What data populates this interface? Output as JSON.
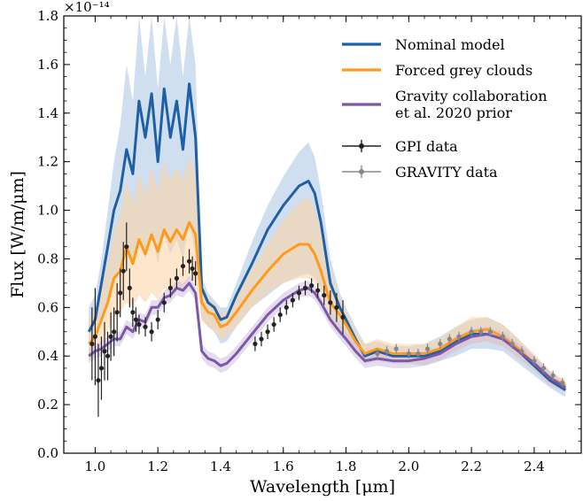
{
  "chart_data": {
    "type": "line",
    "xlabel": "Wavelength [μm]",
    "ylabel": "Flux [W/m/μm]",
    "y_scale_label": "×10⁻¹⁴",
    "y_scale_factor": 1e-14,
    "xlim": [
      0.9,
      2.55
    ],
    "ylim": [
      0.0,
      1.8
    ],
    "x_ticks": [
      1.0,
      1.2,
      1.4,
      1.6,
      1.8,
      2.0,
      2.2,
      2.4
    ],
    "x_tick_labels": [
      "1.0",
      "1.2",
      "1.4",
      "1.6",
      "1.8",
      "2.0",
      "2.2",
      "2.4"
    ],
    "y_ticks": [
      0.0,
      0.2,
      0.4,
      0.6,
      0.8,
      1.0,
      1.2,
      1.4,
      1.6,
      1.8
    ],
    "y_tick_labels": [
      "0.0",
      "0.2",
      "0.4",
      "0.6",
      "0.8",
      "1.0",
      "1.2",
      "1.4",
      "1.6",
      "1.8"
    ],
    "grid": false,
    "legend_position": "top-right",
    "legend": [
      {
        "label": "Nominal model",
        "kind": "line",
        "color": "#1f5fa3"
      },
      {
        "label": "Forced grey clouds",
        "kind": "line",
        "color": "#ff9a1a"
      },
      {
        "label": "Gravity collaboration",
        "label2": "et al. 2020 prior",
        "kind": "line",
        "color": "#7b58a8"
      },
      {
        "label": "GPI data",
        "kind": "errorbar",
        "color": "#222222"
      },
      {
        "label": "GRAVITY data",
        "kind": "errorbar",
        "color": "#888888"
      }
    ],
    "series": [
      {
        "name": "Nominal model",
        "color": "#1f5fa3",
        "band_color": "#a9c4e2",
        "x": [
          0.98,
          1.0,
          1.02,
          1.04,
          1.06,
          1.08,
          1.1,
          1.12,
          1.14,
          1.16,
          1.18,
          1.2,
          1.22,
          1.24,
          1.26,
          1.28,
          1.3,
          1.32,
          1.34,
          1.36,
          1.38,
          1.4,
          1.42,
          1.45,
          1.5,
          1.55,
          1.6,
          1.65,
          1.68,
          1.7,
          1.72,
          1.75,
          1.78,
          1.8,
          1.83,
          1.86,
          1.9,
          1.95,
          2.0,
          2.05,
          2.1,
          2.15,
          2.2,
          2.25,
          2.3,
          2.35,
          2.4,
          2.45,
          2.5
        ],
        "y": [
          0.5,
          0.55,
          0.7,
          0.85,
          1.0,
          1.08,
          1.25,
          1.15,
          1.45,
          1.3,
          1.48,
          1.2,
          1.5,
          1.3,
          1.45,
          1.25,
          1.52,
          1.3,
          0.68,
          0.62,
          0.6,
          0.55,
          0.56,
          0.65,
          0.78,
          0.92,
          1.02,
          1.1,
          1.12,
          1.07,
          0.95,
          0.7,
          0.6,
          0.55,
          0.47,
          0.4,
          0.42,
          0.4,
          0.4,
          0.4,
          0.42,
          0.46,
          0.49,
          0.49,
          0.47,
          0.42,
          0.36,
          0.3,
          0.26
        ],
        "band_upper": [
          0.6,
          0.65,
          0.8,
          1.0,
          1.2,
          1.35,
          1.6,
          1.45,
          1.8,
          1.55,
          1.8,
          1.5,
          1.8,
          1.6,
          1.8,
          1.55,
          1.8,
          1.6,
          0.72,
          0.66,
          0.63,
          0.6,
          0.6,
          0.7,
          0.87,
          1.02,
          1.14,
          1.24,
          1.28,
          1.22,
          1.08,
          0.8,
          0.66,
          0.6,
          0.52,
          0.45,
          0.46,
          0.44,
          0.44,
          0.45,
          0.48,
          0.52,
          0.55,
          0.56,
          0.53,
          0.47,
          0.4,
          0.33,
          0.28
        ],
        "band_lower": [
          0.4,
          0.45,
          0.55,
          0.62,
          0.7,
          0.75,
          0.82,
          0.78,
          0.88,
          0.8,
          0.9,
          0.78,
          0.9,
          0.82,
          0.88,
          0.8,
          0.95,
          0.82,
          0.55,
          0.52,
          0.5,
          0.45,
          0.46,
          0.52,
          0.6,
          0.65,
          0.7,
          0.73,
          0.74,
          0.72,
          0.68,
          0.58,
          0.52,
          0.47,
          0.42,
          0.37,
          0.38,
          0.37,
          0.37,
          0.36,
          0.38,
          0.4,
          0.43,
          0.43,
          0.42,
          0.37,
          0.32,
          0.27,
          0.23
        ]
      },
      {
        "name": "Forced grey clouds",
        "color": "#ff9a1a",
        "band_color": "#fcd2a0",
        "x": [
          0.98,
          1.0,
          1.02,
          1.04,
          1.06,
          1.08,
          1.1,
          1.12,
          1.14,
          1.16,
          1.18,
          1.2,
          1.22,
          1.24,
          1.26,
          1.28,
          1.3,
          1.32,
          1.34,
          1.36,
          1.38,
          1.4,
          1.42,
          1.45,
          1.5,
          1.55,
          1.6,
          1.65,
          1.68,
          1.7,
          1.72,
          1.75,
          1.78,
          1.8,
          1.83,
          1.86,
          1.9,
          1.95,
          2.0,
          2.05,
          2.1,
          2.15,
          2.2,
          2.25,
          2.3,
          2.35,
          2.4,
          2.45,
          2.5
        ],
        "y": [
          0.45,
          0.48,
          0.55,
          0.62,
          0.72,
          0.75,
          0.85,
          0.78,
          0.88,
          0.82,
          0.9,
          0.83,
          0.92,
          0.87,
          0.92,
          0.88,
          0.95,
          0.9,
          0.62,
          0.58,
          0.57,
          0.52,
          0.53,
          0.58,
          0.67,
          0.75,
          0.82,
          0.86,
          0.86,
          0.82,
          0.75,
          0.62,
          0.57,
          0.53,
          0.46,
          0.41,
          0.43,
          0.41,
          0.41,
          0.41,
          0.43,
          0.47,
          0.5,
          0.51,
          0.48,
          0.43,
          0.37,
          0.31,
          0.28
        ],
        "band_upper": [
          0.55,
          0.58,
          0.68,
          0.78,
          0.92,
          0.98,
          1.12,
          1.02,
          1.15,
          1.06,
          1.18,
          1.08,
          1.2,
          1.12,
          1.18,
          1.12,
          1.22,
          1.15,
          0.7,
          0.64,
          0.62,
          0.58,
          0.58,
          0.64,
          0.76,
          0.86,
          0.96,
          1.03,
          1.05,
          1.0,
          0.92,
          0.74,
          0.64,
          0.58,
          0.5,
          0.45,
          0.47,
          0.45,
          0.45,
          0.45,
          0.47,
          0.52,
          0.56,
          0.56,
          0.53,
          0.47,
          0.41,
          0.34,
          0.3
        ],
        "band_lower": [
          0.38,
          0.4,
          0.45,
          0.5,
          0.56,
          0.58,
          0.62,
          0.6,
          0.65,
          0.62,
          0.66,
          0.63,
          0.68,
          0.66,
          0.69,
          0.67,
          0.72,
          0.7,
          0.55,
          0.52,
          0.5,
          0.47,
          0.48,
          0.52,
          0.6,
          0.66,
          0.7,
          0.72,
          0.72,
          0.7,
          0.66,
          0.56,
          0.51,
          0.48,
          0.42,
          0.38,
          0.39,
          0.38,
          0.37,
          0.37,
          0.39,
          0.43,
          0.45,
          0.46,
          0.44,
          0.39,
          0.34,
          0.28,
          0.25
        ]
      },
      {
        "name": "Gravity collaboration et al. 2020 prior",
        "color": "#7b58a8",
        "band_color": "#cfbfe0",
        "x": [
          0.98,
          1.0,
          1.02,
          1.04,
          1.06,
          1.08,
          1.1,
          1.12,
          1.14,
          1.16,
          1.18,
          1.2,
          1.22,
          1.24,
          1.26,
          1.28,
          1.3,
          1.32,
          1.34,
          1.36,
          1.38,
          1.4,
          1.42,
          1.45,
          1.5,
          1.55,
          1.6,
          1.65,
          1.68,
          1.7,
          1.72,
          1.75,
          1.78,
          1.8,
          1.83,
          1.86,
          1.9,
          1.95,
          2.0,
          2.05,
          2.1,
          2.15,
          2.2,
          2.25,
          2.3,
          2.35,
          2.4,
          2.45,
          2.5
        ],
        "y": [
          0.4,
          0.42,
          0.43,
          0.45,
          0.47,
          0.47,
          0.52,
          0.5,
          0.55,
          0.54,
          0.6,
          0.6,
          0.64,
          0.65,
          0.68,
          0.67,
          0.7,
          0.66,
          0.42,
          0.39,
          0.38,
          0.36,
          0.37,
          0.41,
          0.49,
          0.57,
          0.63,
          0.67,
          0.68,
          0.66,
          0.62,
          0.55,
          0.5,
          0.47,
          0.42,
          0.38,
          0.39,
          0.38,
          0.38,
          0.39,
          0.41,
          0.45,
          0.48,
          0.49,
          0.47,
          0.42,
          0.37,
          0.31,
          0.27
        ],
        "band_upper": [
          0.43,
          0.45,
          0.46,
          0.48,
          0.5,
          0.5,
          0.55,
          0.53,
          0.58,
          0.57,
          0.63,
          0.63,
          0.67,
          0.68,
          0.71,
          0.7,
          0.73,
          0.69,
          0.45,
          0.42,
          0.41,
          0.39,
          0.4,
          0.44,
          0.52,
          0.6,
          0.66,
          0.7,
          0.71,
          0.69,
          0.65,
          0.58,
          0.53,
          0.5,
          0.45,
          0.41,
          0.42,
          0.41,
          0.41,
          0.42,
          0.44,
          0.48,
          0.51,
          0.52,
          0.5,
          0.45,
          0.4,
          0.34,
          0.29
        ],
        "band_lower": [
          0.37,
          0.39,
          0.4,
          0.42,
          0.44,
          0.44,
          0.49,
          0.47,
          0.52,
          0.51,
          0.57,
          0.57,
          0.61,
          0.62,
          0.65,
          0.64,
          0.67,
          0.63,
          0.39,
          0.36,
          0.35,
          0.33,
          0.34,
          0.38,
          0.46,
          0.54,
          0.6,
          0.64,
          0.65,
          0.63,
          0.59,
          0.52,
          0.47,
          0.44,
          0.39,
          0.35,
          0.36,
          0.35,
          0.35,
          0.36,
          0.38,
          0.42,
          0.45,
          0.46,
          0.44,
          0.39,
          0.34,
          0.28,
          0.25
        ]
      }
    ],
    "data": [
      {
        "name": "GPI data",
        "color": "#222222",
        "points": [
          {
            "x": 0.99,
            "y": 0.45,
            "err": 0.15
          },
          {
            "x": 1.0,
            "y": 0.48,
            "err": 0.2
          },
          {
            "x": 1.01,
            "y": 0.3,
            "err": 0.15
          },
          {
            "x": 1.02,
            "y": 0.35,
            "err": 0.13
          },
          {
            "x": 1.03,
            "y": 0.42,
            "err": 0.12
          },
          {
            "x": 1.04,
            "y": 0.4,
            "err": 0.1
          },
          {
            "x": 1.05,
            "y": 0.48,
            "err": 0.1
          },
          {
            "x": 1.06,
            "y": 0.5,
            "err": 0.1
          },
          {
            "x": 1.07,
            "y": 0.58,
            "err": 0.12
          },
          {
            "x": 1.08,
            "y": 0.66,
            "err": 0.1
          },
          {
            "x": 1.09,
            "y": 0.75,
            "err": 0.12
          },
          {
            "x": 1.1,
            "y": 0.85,
            "err": 0.1
          },
          {
            "x": 1.11,
            "y": 0.68,
            "err": 0.08
          },
          {
            "x": 1.12,
            "y": 0.58,
            "err": 0.06
          },
          {
            "x": 1.13,
            "y": 0.55,
            "err": 0.05
          },
          {
            "x": 1.14,
            "y": 0.53,
            "err": 0.04
          },
          {
            "x": 1.16,
            "y": 0.52,
            "err": 0.04
          },
          {
            "x": 1.18,
            "y": 0.5,
            "err": 0.04
          },
          {
            "x": 1.2,
            "y": 0.55,
            "err": 0.04
          },
          {
            "x": 1.22,
            "y": 0.62,
            "err": 0.04
          },
          {
            "x": 1.24,
            "y": 0.68,
            "err": 0.04
          },
          {
            "x": 1.26,
            "y": 0.72,
            "err": 0.04
          },
          {
            "x": 1.28,
            "y": 0.77,
            "err": 0.04
          },
          {
            "x": 1.3,
            "y": 0.79,
            "err": 0.05
          },
          {
            "x": 1.31,
            "y": 0.76,
            "err": 0.05
          },
          {
            "x": 1.32,
            "y": 0.74,
            "err": 0.05
          },
          {
            "x": 1.51,
            "y": 0.45,
            "err": 0.03
          },
          {
            "x": 1.53,
            "y": 0.47,
            "err": 0.03
          },
          {
            "x": 1.55,
            "y": 0.5,
            "err": 0.03
          },
          {
            "x": 1.57,
            "y": 0.53,
            "err": 0.03
          },
          {
            "x": 1.59,
            "y": 0.57,
            "err": 0.03
          },
          {
            "x": 1.61,
            "y": 0.6,
            "err": 0.03
          },
          {
            "x": 1.63,
            "y": 0.63,
            "err": 0.03
          },
          {
            "x": 1.65,
            "y": 0.66,
            "err": 0.03
          },
          {
            "x": 1.67,
            "y": 0.68,
            "err": 0.03
          },
          {
            "x": 1.69,
            "y": 0.69,
            "err": 0.03
          },
          {
            "x": 1.71,
            "y": 0.67,
            "err": 0.03
          },
          {
            "x": 1.73,
            "y": 0.65,
            "err": 0.04
          },
          {
            "x": 1.75,
            "y": 0.62,
            "err": 0.05
          },
          {
            "x": 1.77,
            "y": 0.6,
            "err": 0.06
          },
          {
            "x": 1.79,
            "y": 0.56,
            "err": 0.07
          }
        ]
      },
      {
        "name": "GRAVITY data",
        "color": "#888888",
        "points": [
          {
            "x": 1.9,
            "y": 0.41,
            "err": 0.02
          },
          {
            "x": 1.93,
            "y": 0.42,
            "err": 0.02
          },
          {
            "x": 1.96,
            "y": 0.43,
            "err": 0.02
          },
          {
            "x": 2.0,
            "y": 0.41,
            "err": 0.02
          },
          {
            "x": 2.03,
            "y": 0.41,
            "err": 0.02
          },
          {
            "x": 2.06,
            "y": 0.43,
            "err": 0.02
          },
          {
            "x": 2.1,
            "y": 0.45,
            "err": 0.02
          },
          {
            "x": 2.13,
            "y": 0.47,
            "err": 0.02
          },
          {
            "x": 2.16,
            "y": 0.48,
            "err": 0.02
          },
          {
            "x": 2.2,
            "y": 0.5,
            "err": 0.02
          },
          {
            "x": 2.23,
            "y": 0.5,
            "err": 0.02
          },
          {
            "x": 2.26,
            "y": 0.5,
            "err": 0.02
          },
          {
            "x": 2.3,
            "y": 0.48,
            "err": 0.02
          },
          {
            "x": 2.33,
            "y": 0.45,
            "err": 0.02
          },
          {
            "x": 2.36,
            "y": 0.42,
            "err": 0.02
          },
          {
            "x": 2.4,
            "y": 0.38,
            "err": 0.02
          },
          {
            "x": 2.43,
            "y": 0.35,
            "err": 0.02
          },
          {
            "x": 2.46,
            "y": 0.32,
            "err": 0.02
          },
          {
            "x": 2.49,
            "y": 0.29,
            "err": 0.02
          }
        ]
      }
    ]
  }
}
